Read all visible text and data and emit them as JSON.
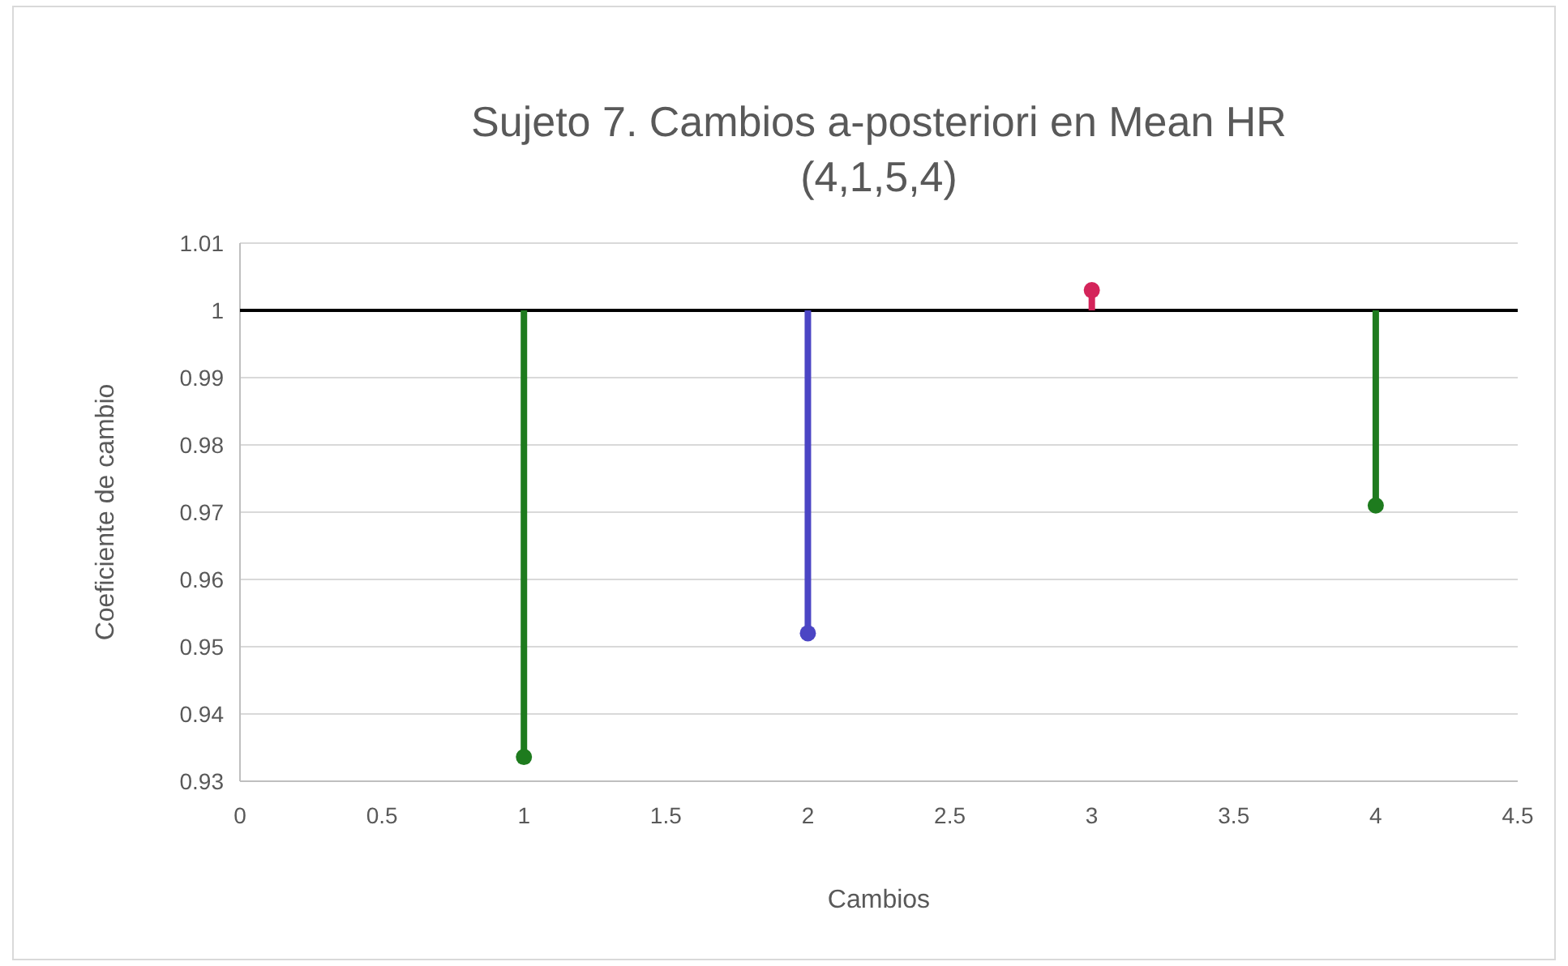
{
  "chart_data": {
    "type": "scatter",
    "title": "Sujeto 7. Cambios a-posteriori en Mean HR",
    "subtitle": "(4,1,5,4)",
    "xlabel": "Cambios",
    "ylabel": "Coeficiente de cambio",
    "x": [
      1,
      2,
      3,
      4
    ],
    "values": [
      0.9336,
      0.952,
      1.003,
      0.971
    ],
    "errors": [
      [
        0.9336,
        1
      ],
      [
        0.952,
        1
      ],
      [
        1,
        1.003
      ],
      [
        0.971,
        1
      ]
    ],
    "colors": [
      "#1e7b1e",
      "#4b45c4",
      "#d4245a",
      "#1e7b1e"
    ],
    "xlim": [
      0,
      4.5
    ],
    "xticks": [
      0,
      0.5,
      1,
      1.5,
      2,
      2.5,
      3,
      3.5,
      4,
      4.5
    ],
    "ylim": [
      0.93,
      1.01
    ],
    "yticks": [
      0.93,
      0.94,
      0.95,
      0.96,
      0.97,
      0.98,
      0.99,
      1,
      1.01
    ],
    "ref_lines": [
      {
        "axis": "y",
        "value": 1,
        "color": "#000000"
      }
    ],
    "grid": "y",
    "marker": "circle"
  }
}
